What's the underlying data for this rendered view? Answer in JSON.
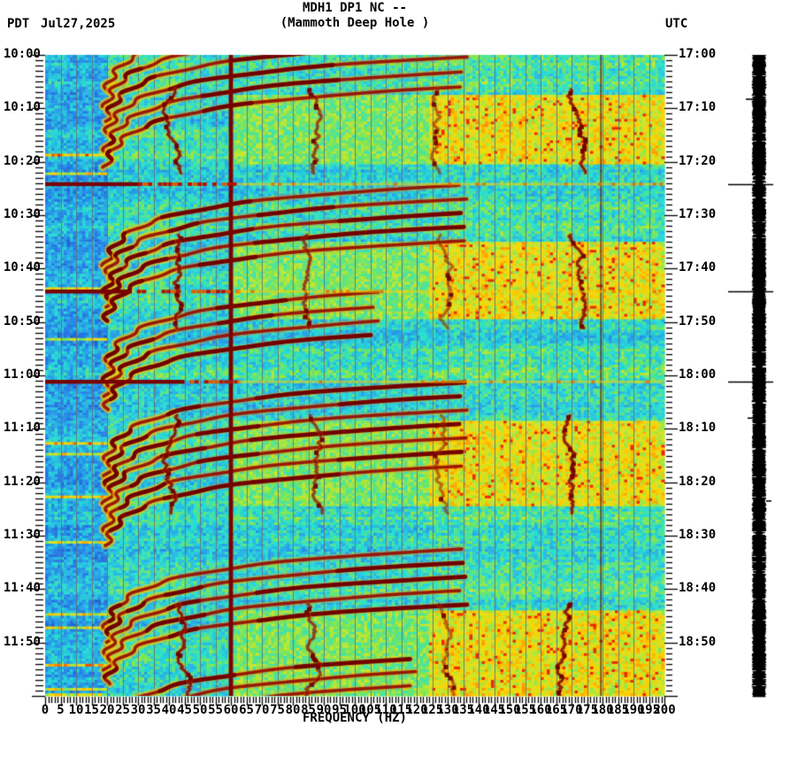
{
  "header": {
    "tz_left": "PDT",
    "date": "Jul27,2025",
    "title_line1": "MDH1 DP1 NC --",
    "title_line2": "(Mammoth Deep Hole )",
    "tz_right": "UTC"
  },
  "x_axis": {
    "label": "FREQUENCY (HZ)",
    "min_hz": 0,
    "max_hz": 200,
    "minor_step_hz": 1,
    "major_step_hz": 5,
    "tick_labels": [
      "0",
      "5",
      "10",
      "15",
      "20",
      "25",
      "30",
      "35",
      "40",
      "45",
      "50",
      "55",
      "60",
      "65",
      "70",
      "75",
      "80",
      "85",
      "90",
      "95",
      "100",
      "105",
      "110",
      "115",
      "120",
      "125",
      "130",
      "135",
      "140",
      "145",
      "150",
      "155",
      "160",
      "165",
      "170",
      "175",
      "180",
      "185",
      "190",
      "195",
      "200"
    ]
  },
  "y_axis_left": {
    "timezone": "PDT",
    "start": "10:00",
    "end": "12:00",
    "minor_step_min": 1,
    "major_step_min": 10,
    "tick_labels": [
      "10:00",
      "10:10",
      "10:20",
      "10:30",
      "10:40",
      "10:50",
      "11:00",
      "11:10",
      "11:20",
      "11:30",
      "11:40",
      "11:50"
    ]
  },
  "y_axis_right": {
    "timezone": "UTC",
    "start": "17:00",
    "end": "19:00",
    "minor_step_min": 1,
    "major_step_min": 10,
    "tick_labels": [
      "17:00",
      "17:10",
      "17:20",
      "17:30",
      "17:40",
      "17:50",
      "18:00",
      "18:10",
      "18:20",
      "18:30",
      "18:40",
      "18:50"
    ]
  },
  "chart_data": {
    "type": "heatmap",
    "title": "MDH1 DP1 NC -- (Mammoth Deep Hole )",
    "xlabel": "FREQUENCY (HZ)",
    "x_range_hz": [
      0,
      200
    ],
    "time_range_pdt": [
      "10:00",
      "12:00"
    ],
    "time_range_utc": [
      "17:00",
      "19:00"
    ],
    "grid": "vertical gray lines every 5 Hz",
    "palette_stops": [
      [
        0,
        "#1450b4"
      ],
      [
        0.16,
        "#2878e6"
      ],
      [
        0.3,
        "#28b4e6"
      ],
      [
        0.42,
        "#28e0d2"
      ],
      [
        0.55,
        "#78e65a"
      ],
      [
        0.66,
        "#d2e628"
      ],
      [
        0.76,
        "#ffd200"
      ],
      [
        0.86,
        "#ff7800"
      ],
      [
        0.94,
        "#e61e00"
      ],
      [
        1,
        "#7c0000"
      ]
    ],
    "grid_color": "rgba(95,110,120,0.85)",
    "power_line_hz": 60,
    "power_line_color": "#7a0202",
    "faint_line_hz": 179.5,
    "low_freq_blue_below_hz": 20,
    "high_freq_noise_bands": {
      "f_min_hz": 123,
      "windows_min_after_1000pdt": [
        [
          7.5,
          20.3
        ],
        [
          34.7,
          49.3
        ],
        [
          68.5,
          84.0
        ],
        [
          103.8,
          120
        ]
      ]
    },
    "persistent_tremor_lines": [
      {
        "hz": 42.5,
        "strength": 0.95
      },
      {
        "hz": 85,
        "strength": 0.75
      },
      {
        "hz": 127.5,
        "strength": 0.55
      },
      {
        "hz": 170,
        "strength": 0.95
      }
    ],
    "glide_model": {
      "f_floor_hz": 18,
      "f_peak_hz": 135,
      "tau_min": 3.5,
      "arc_duration_min": 15
    },
    "glide_episodes": [
      {
        "onsets_min": [
          -8,
          -5.2,
          -2.4,
          0.4,
          3.2,
          6.0
        ],
        "fmax_hz": 137
      },
      {
        "onsets_min": [
          24.4,
          27.0,
          29.6,
          32.2,
          34.8
        ],
        "fmax_hz": 137
      },
      {
        "onsets_min": [
          43.5,
          46.2,
          48.9,
          51.4
        ],
        "fmax_hz": 108
      },
      {
        "onsets_min": [
          61.3,
          63.9,
          66.5,
          69.1,
          71.7,
          74.3,
          77.0
        ],
        "fmax_hz": 137
      },
      {
        "onsets_min": [
          92.5,
          95.1,
          97.7,
          100.3,
          102.9
        ],
        "fmax_hz": 137
      },
      {
        "onsets_min": [
          112.5,
          115.0,
          117.5,
          120.0
        ],
        "fmax_hz": 120
      }
    ],
    "broadband_events": [
      {
        "time_pdt": "10:24",
        "t_min": 24.2,
        "solid_to_hz": 30
      },
      {
        "time_pdt": "10:44",
        "t_min": 44.3,
        "solid_to_hz": 28
      },
      {
        "time_pdt": "11:01",
        "t_min": 61.2,
        "solid_to_hz": 45
      }
    ]
  },
  "trace_bar": {
    "description": "clipped amplitude trace",
    "color": "#000000",
    "event_tick_times_min": [
      24.2,
      44.3,
      61.2
    ]
  }
}
